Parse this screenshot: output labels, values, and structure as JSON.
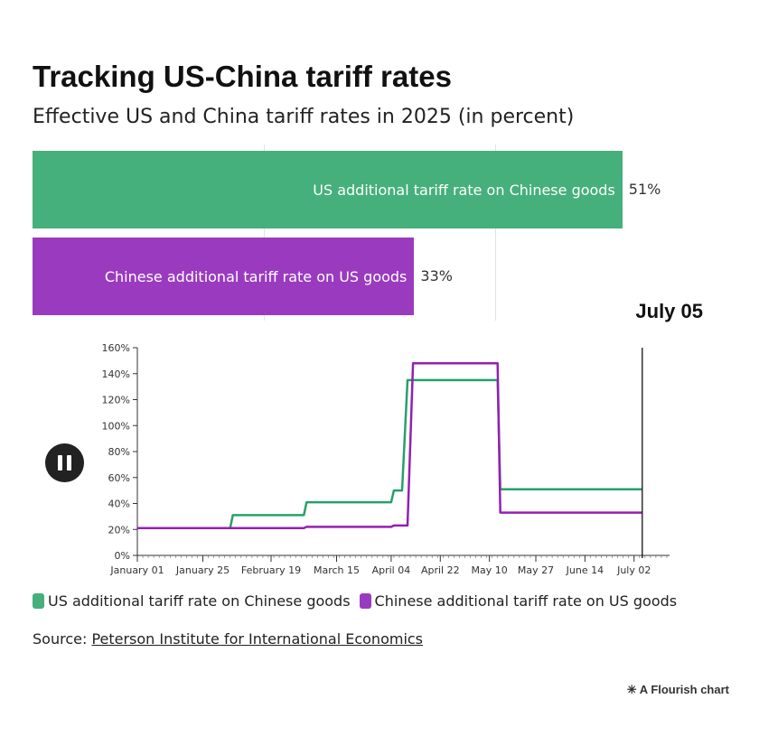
{
  "title": "Tracking US-China tariff rates",
  "subtitle": "Effective US and China tariff rates in 2025 (in percent)",
  "current_date": "July 05",
  "colors": {
    "us": "#45b07b",
    "china": "#9a3bbf",
    "us_line": "#27a06a",
    "china_line": "#9420b4"
  },
  "bars": [
    {
      "label": "US additional tariff rate on Chinese goods",
      "value": 51,
      "value_label": "51%"
    },
    {
      "label": "Chinese additional tariff rate on US goods",
      "value": 33,
      "value_label": "33%"
    }
  ],
  "controls": {
    "play_state": "pause-icon"
  },
  "chart_data": {
    "type": "line",
    "x_ticks": [
      "January 01",
      "January 25",
      "February 19",
      "March 15",
      "April 04",
      "April 22",
      "May 10",
      "May 27",
      "June 14",
      "July 02"
    ],
    "y_ticks": [
      "0%",
      "20%",
      "40%",
      "60%",
      "80%",
      "100%",
      "120%",
      "140%",
      "160%"
    ],
    "ylim": [
      0,
      160
    ],
    "xlim": [
      "2025-01-01",
      "2025-07-15"
    ],
    "cursor_date": "2025-07-05",
    "series": [
      {
        "name": "US additional tariff rate on Chinese goods",
        "color": "#27a06a",
        "points": [
          [
            "2025-01-01",
            21
          ],
          [
            "2025-02-04",
            21
          ],
          [
            "2025-02-05",
            31
          ],
          [
            "2025-03-03",
            31
          ],
          [
            "2025-03-04",
            41
          ],
          [
            "2025-04-04",
            41
          ],
          [
            "2025-04-05",
            50
          ],
          [
            "2025-04-08",
            50
          ],
          [
            "2025-04-10",
            135
          ],
          [
            "2025-05-13",
            135
          ],
          [
            "2025-05-14",
            51
          ],
          [
            "2025-07-05",
            51
          ]
        ]
      },
      {
        "name": "Chinese additional tariff rate on US goods",
        "color": "#9420b4",
        "points": [
          [
            "2025-01-01",
            21
          ],
          [
            "2025-03-03",
            21
          ],
          [
            "2025-03-04",
            22
          ],
          [
            "2025-04-04",
            22
          ],
          [
            "2025-04-05",
            23
          ],
          [
            "2025-04-10",
            23
          ],
          [
            "2025-04-12",
            148
          ],
          [
            "2025-05-13",
            148
          ],
          [
            "2025-05-14",
            33
          ],
          [
            "2025-07-05",
            33
          ]
        ]
      }
    ]
  },
  "legend": [
    "US additional tariff rate on Chinese goods",
    "Chinese additional tariff rate on US goods"
  ],
  "source": {
    "prefix": "Source: ",
    "link": "Peterson Institute for International Economics"
  },
  "credit": "A Flourish chart"
}
